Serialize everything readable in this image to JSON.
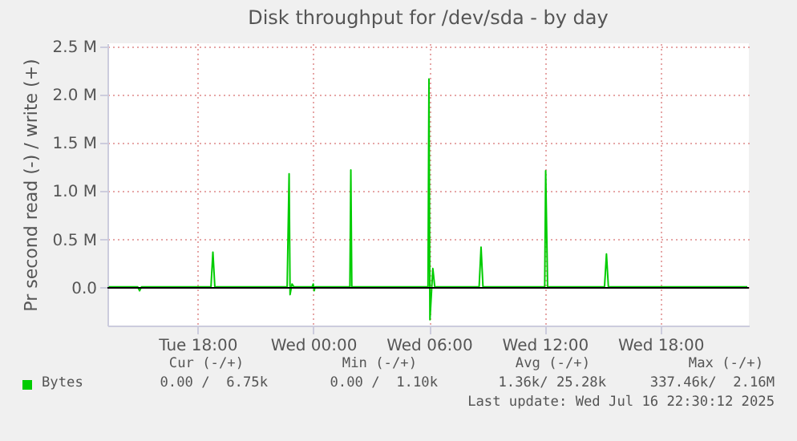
{
  "chart_data": {
    "type": "line",
    "title": "Disk throughput for /dev/sda - by day",
    "ylabel": "Pr second read (-) / write (+)",
    "xlim": [
      "2025-07-15T13:20",
      "2025-07-16T22:35"
    ],
    "xticks": [
      {
        "value": "2025-07-15T18:00",
        "label": "Tue 18:00"
      },
      {
        "value": "2025-07-16T00:00",
        "label": "Wed 00:00"
      },
      {
        "value": "2025-07-16T06:00",
        "label": "Wed 06:00"
      },
      {
        "value": "2025-07-16T12:00",
        "label": "Wed 12:00"
      },
      {
        "value": "2025-07-16T18:00",
        "label": "Wed 18:00"
      }
    ],
    "ylim": [
      -0.39,
      2.53
    ],
    "yticks": [
      {
        "value": 0,
        "label": "0.0"
      },
      {
        "value": 0.5,
        "label": "0.5 M"
      },
      {
        "value": 1,
        "label": "1.0 M"
      },
      {
        "value": 1.5,
        "label": "1.5 M"
      },
      {
        "value": 2,
        "label": "2.0 M"
      },
      {
        "value": 2.5,
        "label": "2.5 M"
      }
    ],
    "grid": true,
    "legend": "bottom",
    "ref_lines": [
      {
        "axis": "y",
        "value": 0,
        "color": "#000000"
      }
    ],
    "series": [
      {
        "name": "Bytes",
        "color": "#00cc00",
        "x": [
          "2025-07-15T13:24",
          "2025-07-15T14:54",
          "2025-07-15T15:00",
          "2025-07-15T15:06",
          "2025-07-15T18:42",
          "2025-07-15T18:48",
          "2025-07-15T18:54",
          "2025-07-15T22:39",
          "2025-07-15T22:45",
          "2025-07-15T22:48",
          "2025-07-15T22:54",
          "2025-07-15T23:00",
          "2025-07-15T23:57",
          "2025-07-16T00:00",
          "2025-07-16T00:03",
          "2025-07-16T00:06",
          "2025-07-16T01:54",
          "2025-07-16T01:57",
          "2025-07-16T02:00",
          "2025-07-16T05:57",
          "2025-07-16T06:00",
          "2025-07-16T06:03",
          "2025-07-16T06:12",
          "2025-07-16T06:18",
          "2025-07-16T08:36",
          "2025-07-16T08:42",
          "2025-07-16T08:48",
          "2025-07-16T12:00",
          "2025-07-16T12:03",
          "2025-07-16T12:09",
          "2025-07-16T15:06",
          "2025-07-16T15:12",
          "2025-07-16T15:18",
          "2025-07-16T22:30"
        ],
        "values": [
          0.01,
          0.01,
          -0.03,
          0.01,
          0.01,
          0.37,
          0.01,
          0.01,
          1.18,
          -0.07,
          0.04,
          0.01,
          0.01,
          0.04,
          -0.03,
          0.01,
          0.01,
          1.22,
          0.01,
          0.01,
          2.16,
          -0.33,
          0.2,
          0.01,
          0.01,
          0.42,
          0.01,
          0.01,
          1.21,
          0.01,
          0.01,
          0.35,
          0.01,
          0.01
        ]
      }
    ],
    "annotations": [
      "Cur (-/+)",
      "Min (-/+)",
      "Avg (-/+)",
      "Max (-/+)",
      "0.00 /  6.75k",
      "0.00 /  1.10k",
      "1.36k/ 25.28k",
      "337.46k/  2.16M",
      "Last update: Wed Jul 16 22:30:12 2025"
    ]
  }
}
